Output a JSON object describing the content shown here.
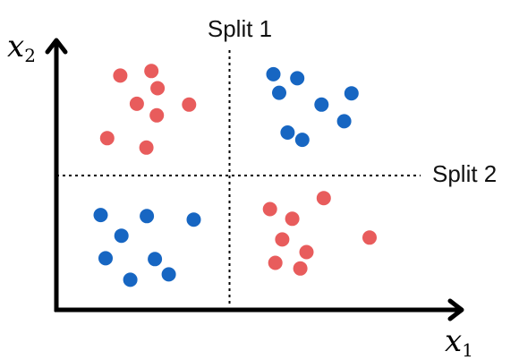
{
  "labels": {
    "split1": "Split 1",
    "split2": "Split 2",
    "x_axis": "x",
    "x_axis_sub": "1",
    "y_axis": "x",
    "y_axis_sub": "2"
  },
  "colors": {
    "red": "#E85C5C",
    "blue": "#1766C2",
    "axis": "#000000"
  },
  "chart_data": {
    "type": "scatter",
    "xlim": [
      0,
      100
    ],
    "ylim": [
      0,
      100
    ],
    "splits": {
      "x": 45,
      "y": 50
    },
    "series": [
      {
        "color": "red",
        "points": [
          [
            16.6,
            87.2
          ],
          [
            24.7,
            88.9
          ],
          [
            26.3,
            82.5
          ],
          [
            20.9,
            76.7
          ],
          [
            26.1,
            72.4
          ],
          [
            34.5,
            76.4
          ],
          [
            13.2,
            63.9
          ],
          [
            23.4,
            60.4
          ],
          [
            69.5,
            41.6
          ],
          [
            55.5,
            37.5
          ],
          [
            61.3,
            33.9
          ],
          [
            58.7,
            26.2
          ],
          [
            81.4,
            26.9
          ],
          [
            65.0,
            21.5
          ],
          [
            56.9,
            17.5
          ],
          [
            63.4,
            15.4
          ]
        ]
      },
      {
        "color": "blue",
        "points": [
          [
            56.4,
            87.7
          ],
          [
            62.6,
            86.2
          ],
          [
            57.9,
            80.8
          ],
          [
            76.7,
            80.6
          ],
          [
            68.9,
            76.4
          ],
          [
            74.8,
            70.2
          ],
          [
            60.1,
            66.0
          ],
          [
            63.9,
            63.3
          ],
          [
            11.5,
            35.3
          ],
          [
            23.5,
            34.9
          ],
          [
            35.7,
            33.6
          ],
          [
            16.9,
            27.6
          ],
          [
            12.8,
            19.2
          ],
          [
            25.6,
            18.9
          ],
          [
            19.2,
            11.2
          ],
          [
            29.2,
            13.2
          ]
        ]
      }
    ]
  }
}
